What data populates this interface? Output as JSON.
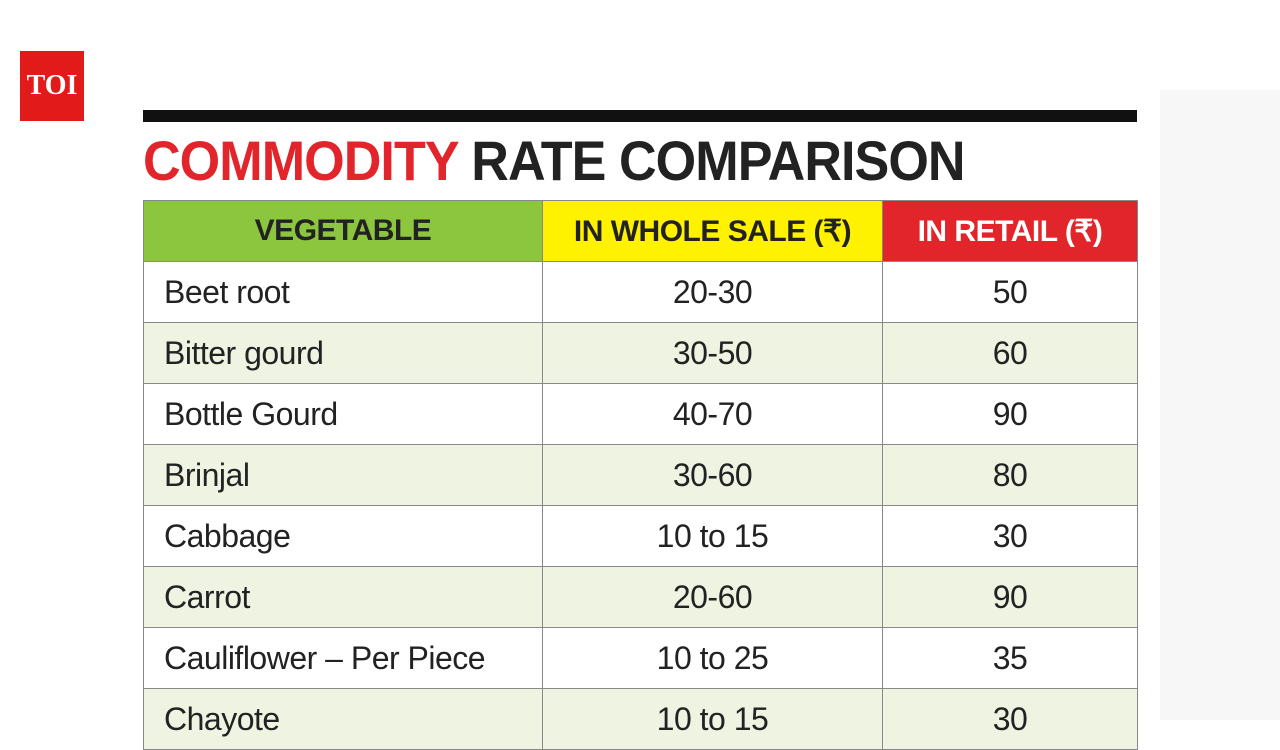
{
  "logo": "TOI",
  "title": {
    "highlight": "COMMODITY",
    "rest": "RATE COMPARISON"
  },
  "table": {
    "header": [
      "VEGETABLE",
      "IN WHOLE SALE (₹)",
      "IN RETAIL (₹)"
    ],
    "rows": [
      [
        "Beet root",
        "20-30",
        "50"
      ],
      [
        "Bitter gourd",
        "30-50",
        "60"
      ],
      [
        "Bottle Gourd",
        "40-70",
        "90"
      ],
      [
        "Brinjal",
        "30-60",
        "80"
      ],
      [
        "Cabbage",
        "10 to 15",
        "30"
      ],
      [
        "Carrot",
        "20-60",
        "90"
      ],
      [
        "Cauliflower – Per Piece",
        "10 to 25",
        "35"
      ],
      [
        "Chayote",
        "10 to 15",
        "30"
      ]
    ]
  }
}
